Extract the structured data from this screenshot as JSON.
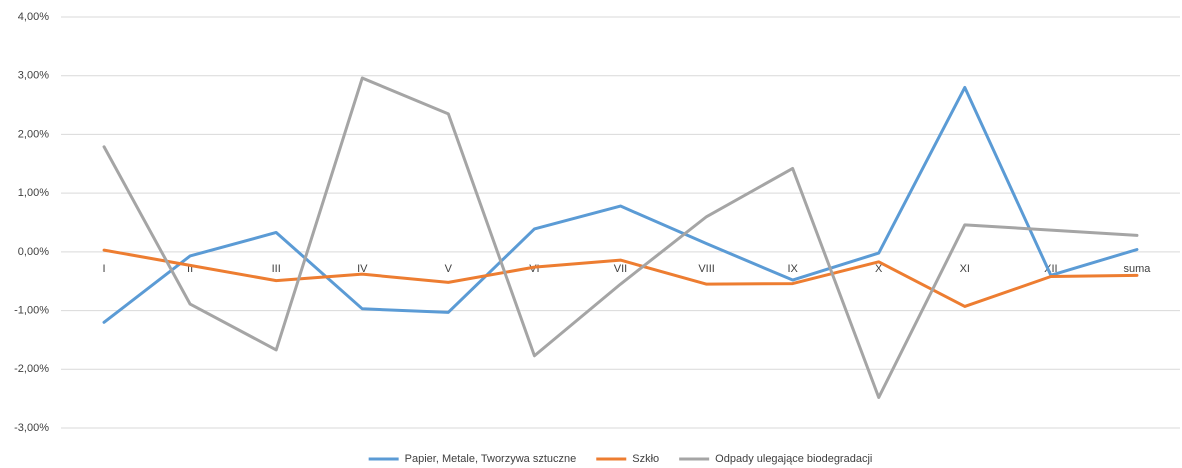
{
  "chart_data": {
    "type": "line",
    "categories": [
      "I",
      "II",
      "III",
      "IV",
      "V",
      "VI",
      "VII",
      "VIII",
      "IX",
      "X",
      "XI",
      "XII",
      "suma"
    ],
    "series": [
      {
        "name": "Papier, Metale, Tworzywa sztuczne",
        "color": "#5b9bd5",
        "values": [
          -1.2,
          -0.07,
          0.33,
          -0.97,
          -1.03,
          0.39,
          0.78,
          0.14,
          -0.48,
          -0.02,
          2.8,
          -0.4,
          0.04
        ]
      },
      {
        "name": "Szkło",
        "color": "#ed7d31",
        "values": [
          0.03,
          -0.23,
          -0.49,
          -0.38,
          -0.52,
          -0.26,
          -0.14,
          -0.55,
          -0.54,
          -0.17,
          -0.93,
          -0.42,
          -0.4
        ]
      },
      {
        "name": "Odpady ulegające biodegradacji",
        "color": "#a5a5a5",
        "values": [
          1.79,
          -0.89,
          -1.67,
          2.96,
          2.35,
          -1.77,
          -0.55,
          0.6,
          1.42,
          -2.48,
          0.46,
          0.37,
          0.28
        ]
      }
    ],
    "ylim": [
      -3,
      4
    ],
    "yticks": [
      {
        "value": -3,
        "label": "-3,00%"
      },
      {
        "value": -2,
        "label": "-2,00%"
      },
      {
        "value": -1,
        "label": "-1,00%"
      },
      {
        "value": 0,
        "label": "0,00%"
      },
      {
        "value": 1,
        "label": "1,00%"
      },
      {
        "value": 2,
        "label": "2,00%"
      },
      {
        "value": 3,
        "label": "3,00%"
      },
      {
        "value": 4,
        "label": "4,00%"
      }
    ],
    "grid": true,
    "legend": "bottom"
  }
}
